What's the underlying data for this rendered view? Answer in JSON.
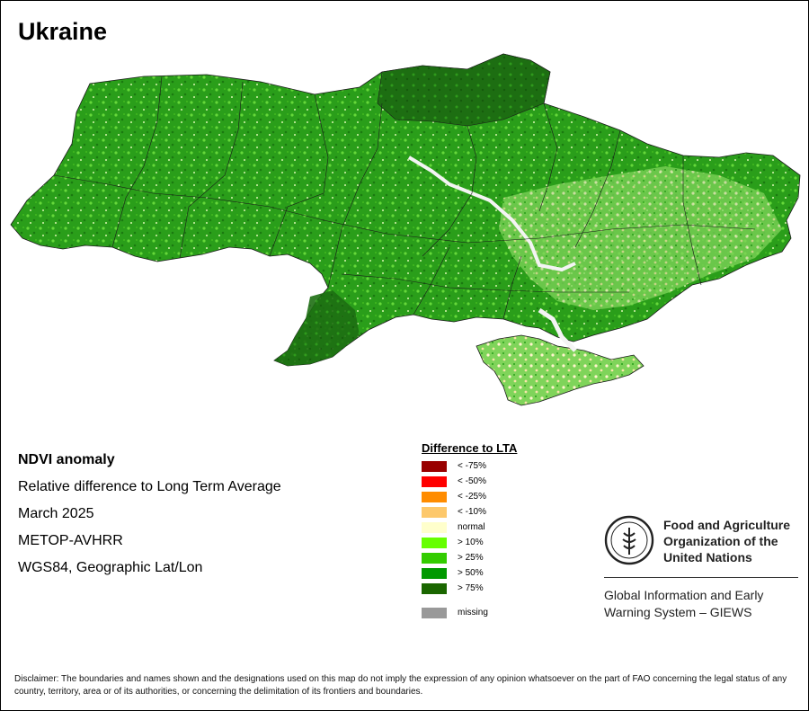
{
  "title": "Ukraine",
  "info": {
    "heading": "NDVI anomaly",
    "line1": "Relative difference to Long Term Average",
    "line2": "March 2025",
    "line3": "METOP-AVHRR",
    "line4": "WGS84, Geographic Lat/Lon"
  },
  "legend": {
    "title": "Difference to LTA",
    "items": [
      {
        "label": "< -75%",
        "color": "#990000"
      },
      {
        "label": "< -50%",
        "color": "#ff0000"
      },
      {
        "label": "< -25%",
        "color": "#ff8c00"
      },
      {
        "label": "< -10%",
        "color": "#fdc86b"
      },
      {
        "label": "normal",
        "color": "#ffffcc"
      },
      {
        "label": "> 10%",
        "color": "#66ff00"
      },
      {
        "label": "> 25%",
        "color": "#33cc00"
      },
      {
        "label": "> 50%",
        "color": "#009900"
      },
      {
        "label": "> 75%",
        "color": "#1a6600"
      }
    ],
    "missing": {
      "label": "missing",
      "color": "#999999"
    }
  },
  "fao": {
    "name_line1": "Food and Agriculture",
    "name_line2": "Organization of the",
    "name_line3": "United Nations",
    "giews_line1": "Global Information and Early",
    "giews_line2": "Warning System – GIEWS"
  },
  "disclaimer": "Disclaimer: The boundaries and names shown and the designations used on this map do not imply the expression of any opinion whatsoever on the part of FAO concerning the legal status of any country, territory, area or of its authorities, or concerning the delimitation of its frontiers and boundaries."
}
